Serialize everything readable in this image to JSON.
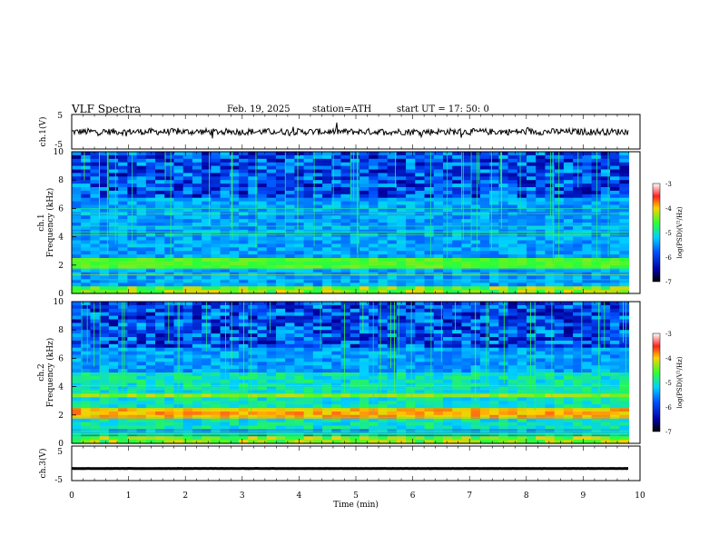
{
  "header": {
    "title": "VLF  Spectra",
    "date": "Feb. 19, 2025",
    "station": "station=ATH",
    "start": "start  UT  =   17: 50: 0"
  },
  "chart_data": [
    {
      "type": "line",
      "panel": "ch1-waveform",
      "ylabel": "ch.1(V)",
      "ylim": [
        -5,
        5
      ],
      "ytick_labels": [
        "5",
        "-5"
      ],
      "xlim": [
        0,
        10
      ],
      "baseline": 0,
      "approx_amplitude": 1.2,
      "data_end_min": 9.8
    },
    {
      "type": "heatmap",
      "panel": "ch1-spectrogram",
      "ylabel_top": "ch.1",
      "ylabel": "Frequency  (kHz)",
      "ylim": [
        0,
        10
      ],
      "ytick_labels": [
        "0",
        "2",
        "4",
        "6",
        "8",
        "10"
      ],
      "xlim": [
        0,
        10
      ],
      "data_end_min": 9.8,
      "colorbar": {
        "label": "log(PSD)(V²/Hz)",
        "range": [
          -7,
          -3
        ],
        "tick_labels": [
          "-3",
          "-4",
          "-5",
          "-6",
          "-7"
        ]
      }
    },
    {
      "type": "heatmap",
      "panel": "ch2-spectrogram",
      "ylabel_top": "ch.2",
      "ylabel": "Frequency  (kHz)",
      "ylim": [
        0,
        10
      ],
      "ytick_labels": [
        "0",
        "2",
        "4",
        "6",
        "8",
        "10"
      ],
      "xlim": [
        0,
        10
      ],
      "data_end_min": 9.8,
      "colorbar": {
        "label": "log(PSD)(V²/Hz)",
        "range": [
          -7,
          -3
        ],
        "tick_labels": [
          "-3",
          "-4",
          "-5",
          "-6",
          "-7"
        ]
      }
    },
    {
      "type": "line",
      "panel": "ch3-waveform",
      "ylabel": "ch.3(V)",
      "ylim": [
        -5,
        5
      ],
      "ytick_labels": [
        "5",
        "-5"
      ],
      "xlim": [
        0,
        10
      ],
      "baseline": -1.5,
      "approx_amplitude": 0.2,
      "data_end_min": 9.8
    }
  ],
  "x_axis": {
    "label": "Time  (min)",
    "tick_labels": [
      "0",
      "1",
      "2",
      "3",
      "4",
      "5",
      "6",
      "7",
      "8",
      "9",
      "10"
    ]
  }
}
